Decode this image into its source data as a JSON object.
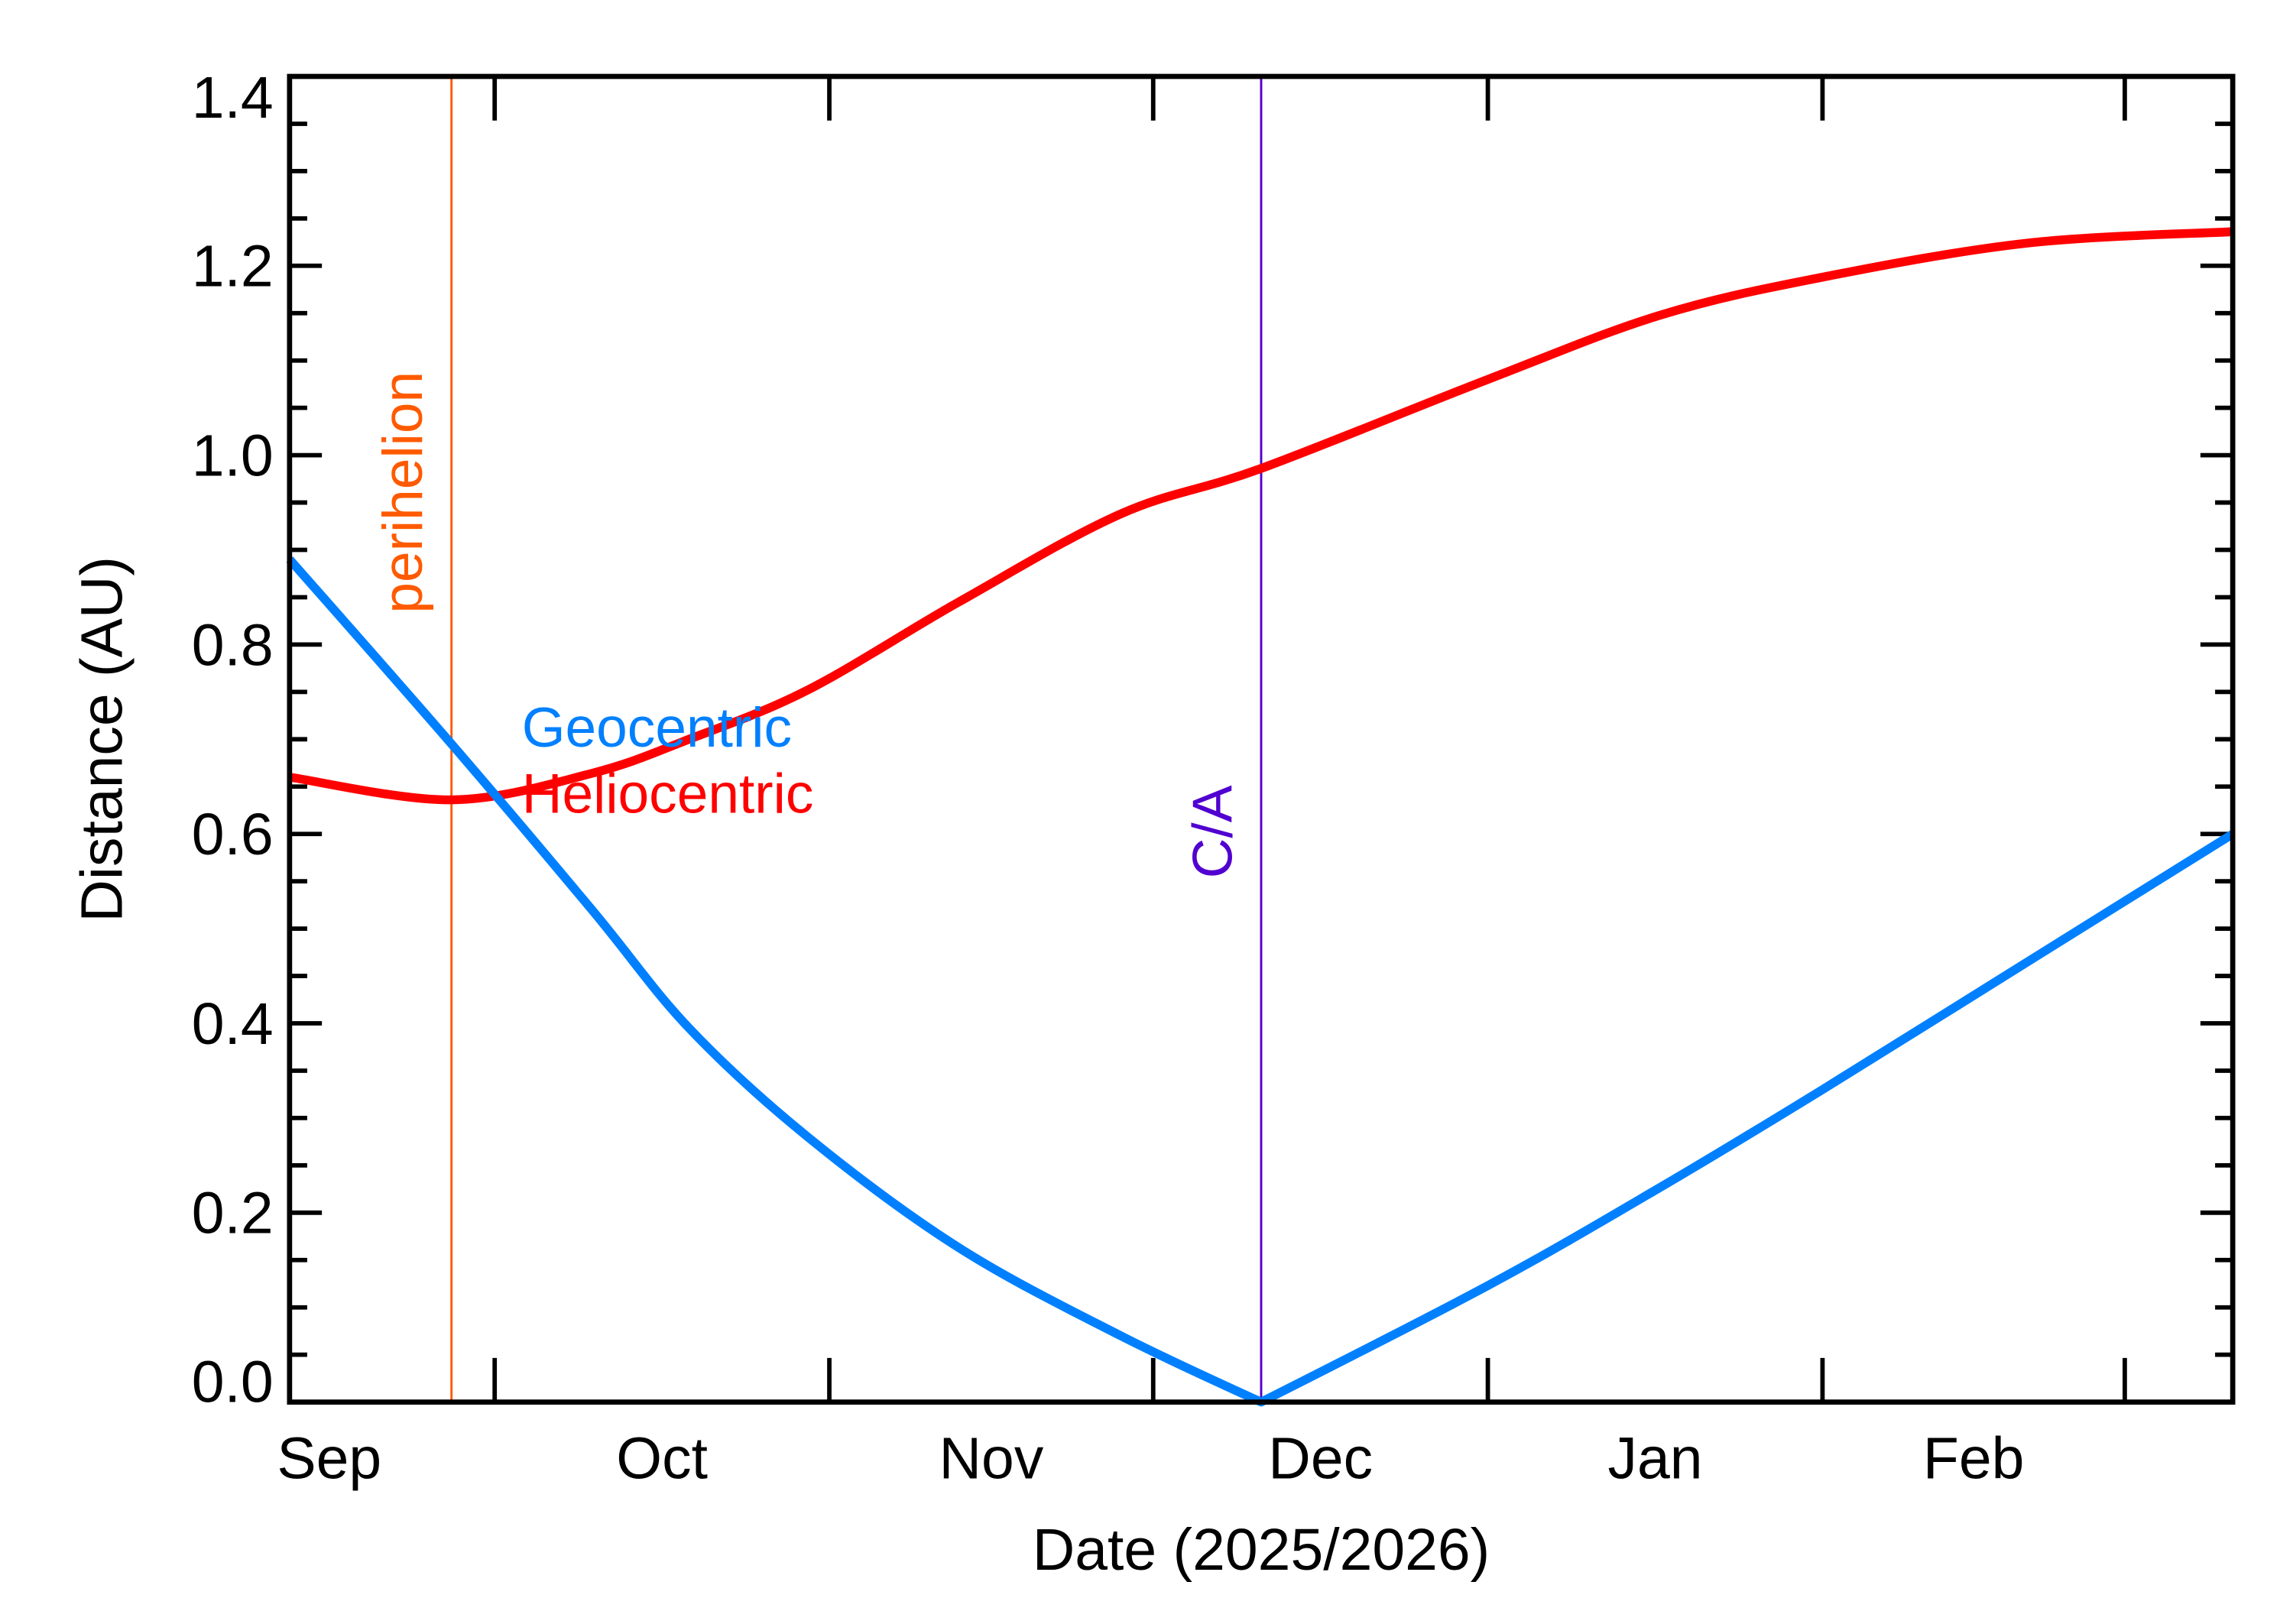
{
  "chart_data": {
    "type": "line",
    "xlabel": "Date (2025/2026)",
    "ylabel": "Distance (AU)",
    "xlim": [
      "2025-09-12",
      "2026-03-11"
    ],
    "ylim": [
      0,
      1.4
    ],
    "x_month_boundaries": [
      "2025-10-01",
      "2025-11-01",
      "2025-12-01",
      "2026-01-01",
      "2026-02-01",
      "2026-03-01"
    ],
    "x_tick_labels": [
      {
        "label": "Sep",
        "from": "2025-09-12",
        "to": "2025-10-01"
      },
      {
        "label": "Oct",
        "from": "2025-10-01",
        "to": "2025-11-01"
      },
      {
        "label": "Nov",
        "from": "2025-11-01",
        "to": "2025-12-01"
      },
      {
        "label": "Dec",
        "from": "2025-12-01",
        "to": "2026-01-01"
      },
      {
        "label": "Jan",
        "from": "2026-01-01",
        "to": "2026-02-01"
      },
      {
        "label": "Feb",
        "from": "2026-02-01",
        "to": "2026-03-01"
      }
    ],
    "y_ticks": [
      0.0,
      0.2,
      0.4,
      0.6,
      0.8,
      1.0,
      1.2,
      1.4
    ],
    "y_tick_labels": [
      "0.0",
      "0.2",
      "0.4",
      "0.6",
      "0.8",
      "1.0",
      "1.2",
      "1.4"
    ],
    "y_minor_step": 0.05,
    "grid": false,
    "series": [
      {
        "name": "Heliocentric",
        "color": "#ff0000",
        "x": [
          "2025-09-12",
          "2025-09-27",
          "2025-10-10",
          "2025-10-19",
          "2025-10-30",
          "2025-11-13",
          "2025-11-28",
          "2025-12-11",
          "2026-01-01",
          "2026-01-17",
          "2026-02-01",
          "2026-02-20",
          "2026-03-11"
        ],
        "y": [
          0.66,
          0.636,
          0.664,
          0.7,
          0.752,
          0.845,
          0.938,
          0.986,
          1.08,
          1.148,
          1.188,
          1.224,
          1.236
        ]
      },
      {
        "name": "Geocentric",
        "color": "#0080ff",
        "x": [
          "2025-09-12",
          "2025-09-27",
          "2025-10-10",
          "2025-10-19",
          "2025-10-30",
          "2025-11-13",
          "2025-11-28",
          "2025-12-11",
          "2026-01-01",
          "2026-01-17",
          "2026-02-01",
          "2026-02-20",
          "2026-03-11"
        ],
        "y": [
          0.89,
          0.695,
          0.52,
          0.395,
          0.28,
          0.163,
          0.07,
          0.0,
          0.123,
          0.227,
          0.33,
          0.465,
          0.6
        ]
      }
    ],
    "annotations": [
      {
        "label": "perihelion",
        "date": "2025-09-27",
        "color": "#ff5a00"
      },
      {
        "label": "C/A",
        "date": "2025-12-11",
        "color": "#5000d0"
      }
    ]
  }
}
